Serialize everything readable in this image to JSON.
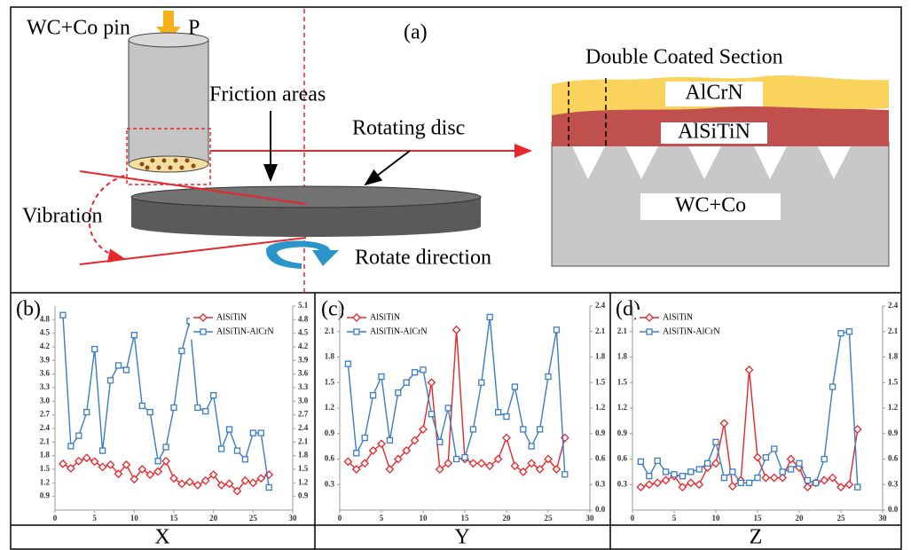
{
  "diagram": {
    "pin_label": "WC+Co pin",
    "load_label": "P",
    "panel_label": "(a)",
    "friction_label": "Friction areas",
    "disc_label": "Rotating disc",
    "vibration_label": "Vibration",
    "rotate_label": "Rotate direction",
    "section_title": "Double Coated Section",
    "top_layer": "AlCrN",
    "middle_layer": "AlSiTiN",
    "substrate": "WC+Co"
  },
  "chart_data": [
    {
      "type": "line",
      "label": "(b)",
      "caption": "X",
      "x": [
        1,
        2,
        3,
        4,
        5,
        6,
        7,
        8,
        9,
        10,
        11,
        12,
        13,
        14,
        15,
        16,
        17,
        18,
        19,
        20,
        21,
        22,
        23,
        24,
        25,
        26,
        27
      ],
      "xlim": [
        0,
        30
      ],
      "xticks": [
        0,
        5,
        10,
        15,
        20,
        25,
        30
      ],
      "ylim": [
        0.6,
        5.1
      ],
      "yticks": [
        0.9,
        1.2,
        1.5,
        1.8,
        2.1,
        2.4,
        2.7,
        {
          "value": 3,
          "label": "3.0"
        },
        3.3,
        3.6,
        3.9,
        4.2,
        4.5,
        4.8
      ],
      "y2lim": [
        0.6,
        5.1
      ],
      "y2ticks": [
        0.9,
        1.2,
        1.5,
        1.8,
        2.1,
        2.4,
        2.7,
        {
          "value": 3,
          "label": "3.0"
        },
        3.3,
        3.6,
        3.9,
        4.2,
        4.5,
        4.8,
        5.1
      ],
      "legend": "upper right",
      "series": [
        {
          "name": "AlSiTiN",
          "color": "#e8262b",
          "marker": "diamond",
          "values": [
            1.62,
            1.52,
            1.68,
            1.75,
            1.67,
            1.55,
            1.6,
            1.4,
            1.6,
            1.28,
            1.5,
            1.38,
            1.45,
            1.68,
            1.3,
            1.18,
            1.22,
            1.15,
            1.25,
            1.38,
            1.15,
            1.18,
            1.02,
            1.25,
            1.2,
            1.3,
            1.38
          ]
        },
        {
          "name": "AlSiTiN-AlCrN",
          "color": "#3b7dc4",
          "marker": "square",
          "values": [
            4.9,
            2.01,
            2.24,
            2.76,
            4.15,
            1.91,
            3.46,
            3.79,
            3.69,
            4.46,
            2.9,
            2.76,
            1.68,
            1.99,
            2.86,
            4.11,
            4.77,
            2.86,
            2.78,
            3.13,
            1.95,
            2.38,
            1.91,
            1.72,
            2.3,
            2.3,
            1.1
          ]
        }
      ]
    },
    {
      "type": "line",
      "label": "(c)",
      "caption": "Y",
      "x": [
        1,
        2,
        3,
        4,
        5,
        6,
        7,
        8,
        9,
        10,
        11,
        12,
        13,
        14,
        15,
        16,
        17,
        18,
        19,
        20,
        21,
        22,
        23,
        24,
        25,
        26,
        27
      ],
      "xlim": [
        0,
        30
      ],
      "xticks": [
        0,
        5,
        10,
        15,
        20,
        25,
        30
      ],
      "ylim": [
        0,
        2.4
      ],
      "yticks": [
        0.3,
        0.6,
        0.9,
        1.2,
        1.5,
        1.8,
        2.1
      ],
      "y2lim": [
        0,
        2.4
      ],
      "y2ticks": [
        {
          "value": 0,
          "label": "0.0"
        },
        0.3,
        0.6,
        0.9,
        1.2,
        1.5,
        1.8,
        2.1,
        2.4
      ],
      "legend": "upper left",
      "series": [
        {
          "name": "AlSiTiN",
          "color": "#e8262b",
          "marker": "diamond",
          "values": [
            0.57,
            0.48,
            0.55,
            0.7,
            0.78,
            0.48,
            0.6,
            0.7,
            0.82,
            0.95,
            1.5,
            0.48,
            0.55,
            2.12,
            0.6,
            0.55,
            0.55,
            0.52,
            0.6,
            0.85,
            0.52,
            0.45,
            0.55,
            0.48,
            0.6,
            0.48,
            0.85
          ]
        },
        {
          "name": "AlSiTiN-AlCrN",
          "color": "#3b7dc4",
          "marker": "square",
          "values": [
            1.72,
            0.67,
            0.85,
            1.35,
            1.57,
            0.82,
            1.38,
            1.5,
            1.62,
            1.65,
            1.13,
            0.8,
            1.2,
            0.6,
            0.62,
            0.95,
            1.5,
            2.27,
            1.15,
            1.1,
            1.45,
            0.95,
            0.75,
            0.95,
            1.57,
            2.12,
            0.42
          ]
        }
      ]
    },
    {
      "type": "line",
      "label": "(d)",
      "caption": "Z",
      "x": [
        1,
        2,
        3,
        4,
        5,
        6,
        7,
        8,
        9,
        10,
        11,
        12,
        13,
        14,
        15,
        16,
        17,
        18,
        19,
        20,
        21,
        22,
        23,
        24,
        25,
        26,
        27
      ],
      "xlim": [
        0,
        30
      ],
      "xticks": [
        0,
        5,
        10,
        15,
        20,
        25,
        30
      ],
      "ylim": [
        0,
        2.4
      ],
      "yticks": [
        0.3,
        0.6,
        0.9,
        1.2,
        1.5,
        1.8,
        2.1
      ],
      "y2lim": [
        0,
        2.4
      ],
      "y2ticks": [
        {
          "value": 0,
          "label": "0.0"
        },
        0.3,
        0.6,
        0.9,
        1.2,
        1.5,
        1.8,
        2.1,
        2.4
      ],
      "legend": "upper left",
      "series": [
        {
          "name": "AlSiTiN",
          "color": "#e8262b",
          "marker": "diamond",
          "values": [
            0.27,
            0.3,
            0.32,
            0.35,
            0.4,
            0.27,
            0.32,
            0.3,
            0.5,
            0.55,
            1.02,
            0.28,
            0.35,
            1.65,
            0.62,
            0.38,
            0.38,
            0.38,
            0.6,
            0.5,
            0.27,
            0.32,
            0.35,
            0.38,
            0.27,
            0.3,
            0.95
          ]
        },
        {
          "name": "AlSiTiN-AlCrN",
          "color": "#3b7dc4",
          "marker": "square",
          "values": [
            0.57,
            0.4,
            0.58,
            0.45,
            0.42,
            0.4,
            0.45,
            0.48,
            0.55,
            0.8,
            0.38,
            0.45,
            0.32,
            0.32,
            0.38,
            0.62,
            0.72,
            0.45,
            0.48,
            0.55,
            0.35,
            0.32,
            0.6,
            1.45,
            2.08,
            2.1,
            0.27
          ]
        }
      ]
    }
  ]
}
